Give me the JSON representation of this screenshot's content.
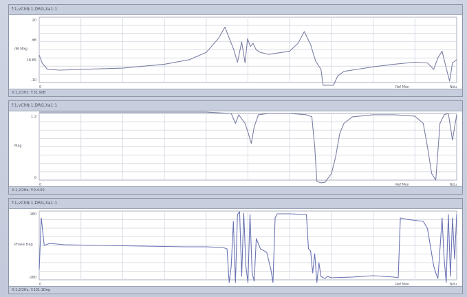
{
  "chart_data": [
    {
      "type": "line",
      "header": "f:1,vChN:1,DRG,Xa1:1",
      "footer": "X:1,2/2Hz, Y:31.9dB",
      "ylabel": "dB Mag",
      "yticks": [
        "20",
        "dB",
        "18.85",
        "-10"
      ],
      "xtick_left": "0",
      "xtick_mid": "Ref Mon",
      "xtick_right": "Ndu",
      "line_color": "#7a7fa3",
      "grid": true,
      "x": [
        0,
        0.7,
        2,
        5,
        10,
        20,
        30,
        36,
        40,
        43,
        44.5,
        45.5,
        46.5,
        47.5,
        48.5,
        49.3,
        49.9,
        50.6,
        51.2,
        52,
        53,
        55,
        60,
        62,
        63.5,
        65,
        66.2,
        67.5,
        68,
        68.6,
        69.6,
        70.5,
        71.5,
        73,
        76,
        80,
        85,
        90,
        93,
        94.5,
        95.5,
        96.5,
        97.5,
        98.3,
        99,
        100
      ],
      "y": [
        0.42,
        0.3,
        0.2,
        0.19,
        0.2,
        0.22,
        0.28,
        0.35,
        0.46,
        0.68,
        0.85,
        0.68,
        0.52,
        0.31,
        0.62,
        0.3,
        0.67,
        0.55,
        0.6,
        0.5,
        0.46,
        0.43,
        0.48,
        0.6,
        0.78,
        0.58,
        0.33,
        0.2,
        -0.07,
        -0.14,
        -0.14,
        -0.06,
        0.1,
        0.17,
        0.2,
        0.24,
        0.28,
        0.31,
        0.3,
        0.2,
        0.38,
        0.48,
        0.22,
        0.02,
        0.3,
        0.35
      ]
    },
    {
      "type": "line",
      "header": "f:1,vChN:1,DRG,Xa1:1",
      "footer": "X:1,2/2Hz, Y:0.4-50",
      "ylabel": "Mag",
      "yticks": [
        "1.2",
        "0"
      ],
      "xtick_left": "0",
      "xtick_mid": "Ref Mon",
      "xtick_right": "Ndu",
      "line_color": "#7a7fa3",
      "grid": true,
      "x": [
        0,
        20,
        40,
        46,
        47,
        47.8,
        48.5,
        49.3,
        50,
        50.8,
        51.5,
        52.5,
        55,
        60,
        64,
        65.3,
        66,
        66.5,
        67.5,
        68.5,
        70,
        71,
        72,
        73,
        75,
        80,
        85,
        90,
        92,
        93,
        94,
        95,
        96,
        97,
        98,
        99,
        100
      ],
      "y": [
        1.02,
        1.02,
        1.02,
        1.0,
        0.85,
        0.98,
        0.92,
        0.85,
        0.72,
        0.55,
        0.8,
        0.98,
        1.0,
        1.0,
        0.98,
        0.95,
        0.5,
        -0.02,
        -0.05,
        -0.03,
        0.1,
        0.35,
        0.7,
        0.85,
        0.95,
        0.98,
        0.98,
        0.96,
        0.85,
        0.5,
        0.1,
        0.0,
        0.85,
        0.98,
        1.0,
        0.6,
        0.98
      ]
    },
    {
      "type": "line",
      "header": "f:1,vChN:1,DRG,Xa1:1",
      "footer": "X:1,2/2Hz, Y:131.1Deg",
      "ylabel": "Phase Deg",
      "yticks": [
        "180",
        "-180"
      ],
      "xtick_left": "0",
      "xtick_mid": "Ref Mon",
      "xtick_right": "Ndu",
      "line_color": "#6a73b3",
      "grid": true,
      "x": [
        0,
        0.5,
        1.2,
        2.5,
        6,
        15,
        25,
        35,
        40,
        44,
        45,
        45.5,
        46,
        46.5,
        47,
        47.5,
        48,
        48.5,
        49,
        49.5,
        50,
        50.5,
        51,
        51.5,
        52,
        53,
        54.5,
        55.5,
        56,
        56.5,
        57,
        60,
        64,
        64.5,
        65,
        65.5,
        66,
        66.5,
        67,
        67.5,
        68,
        68.5,
        69,
        70,
        75,
        80,
        85,
        86,
        86.5,
        88,
        92,
        93,
        93.8,
        94.5,
        95,
        95.5,
        96,
        96.5,
        97,
        97.5,
        98,
        98.5,
        99,
        99.5,
        100
      ],
      "y": [
        0.15,
        0.9,
        0.5,
        0.53,
        0.51,
        0.5,
        0.49,
        0.48,
        0.48,
        0.47,
        0.45,
        -0.08,
        0.2,
        0.85,
        -0.05,
        0.95,
        0.99,
        0.05,
        0.97,
        0.2,
        -0.08,
        0.95,
        0.1,
        -0.02,
        0.6,
        0.45,
        0.4,
        0.15,
        -0.05,
        0.9,
        0.96,
        0.96,
        0.95,
        0.45,
        0.42,
        0.1,
        0.38,
        -0.05,
        0.25,
        0.05,
        0.03,
        0.02,
        0.05,
        0.03,
        0.04,
        0.06,
        0.04,
        0.03,
        0.9,
        0.88,
        0.85,
        0.75,
        0.45,
        0.2,
        0.1,
        0.02,
        0.45,
        0.9,
        0.3,
        -0.05,
        0.95,
        0.05,
        0.9,
        0.3,
        0.95
      ]
    }
  ]
}
